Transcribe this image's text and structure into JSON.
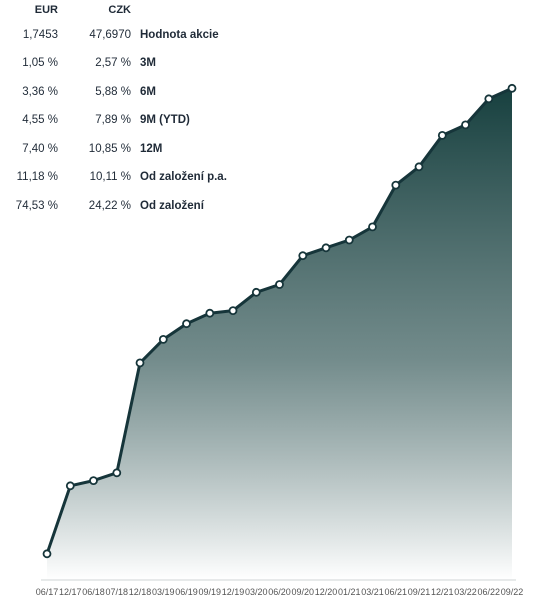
{
  "table": {
    "headers": {
      "eur": "EUR",
      "czk": "CZK"
    },
    "rows": [
      {
        "eur": "1,7453",
        "czk": "47,6970",
        "label": "Hodnota akcie"
      },
      {
        "eur": "1,05 %",
        "czk": "2,57 %",
        "label": "3M"
      },
      {
        "eur": "3,36 %",
        "czk": "5,88 %",
        "label": "6M"
      },
      {
        "eur": "4,55 %",
        "czk": "7,89 %",
        "label": "9M (YTD)"
      },
      {
        "eur": "7,40 %",
        "czk": "10,85 %",
        "label": "12M"
      },
      {
        "eur": "11,18 %",
        "czk": "10,11 %",
        "label": "Od založení p.a."
      },
      {
        "eur": "74,53 %",
        "czk": "24,22 %",
        "label": "Od založení"
      }
    ]
  },
  "chart_data": {
    "type": "area",
    "title": "",
    "xlabel": "",
    "ylabel": "",
    "x": [
      "06/17",
      "12/17",
      "06/18",
      "07/18",
      "12/18",
      "03/19",
      "06/19",
      "09/19",
      "12/19",
      "03/20",
      "06/20",
      "09/20",
      "12/20",
      "01/21",
      "03/21",
      "06/21",
      "09/21",
      "12/21",
      "03/22",
      "06/22",
      "09/22"
    ],
    "x_tick_labels": [
      "06/17",
      "12/17",
      "06/18",
      "07/18",
      "12/18",
      "03/19",
      "06/19",
      "09/19",
      "12/19",
      "03/20",
      "06/20",
      "09/20",
      "12/20",
      "01/21",
      "03/21",
      "06/21",
      "09/21",
      "12/21",
      "03/22",
      "06/22",
      "09/22"
    ],
    "values": [
      1.0,
      1.26,
      1.28,
      1.31,
      1.73,
      1.82,
      1.88,
      1.92,
      1.93,
      2.0,
      2.03,
      2.14,
      2.17,
      2.2,
      2.25,
      2.41,
      2.48,
      2.6,
      2.64,
      2.74,
      2.78
    ],
    "ylim": [
      0.9,
      2.85
    ],
    "grid": false,
    "colors": {
      "line": "#16353a",
      "fill_top": "#17403f",
      "fill_bottom": "#ffffff",
      "marker_fill": "#ffffff"
    }
  }
}
